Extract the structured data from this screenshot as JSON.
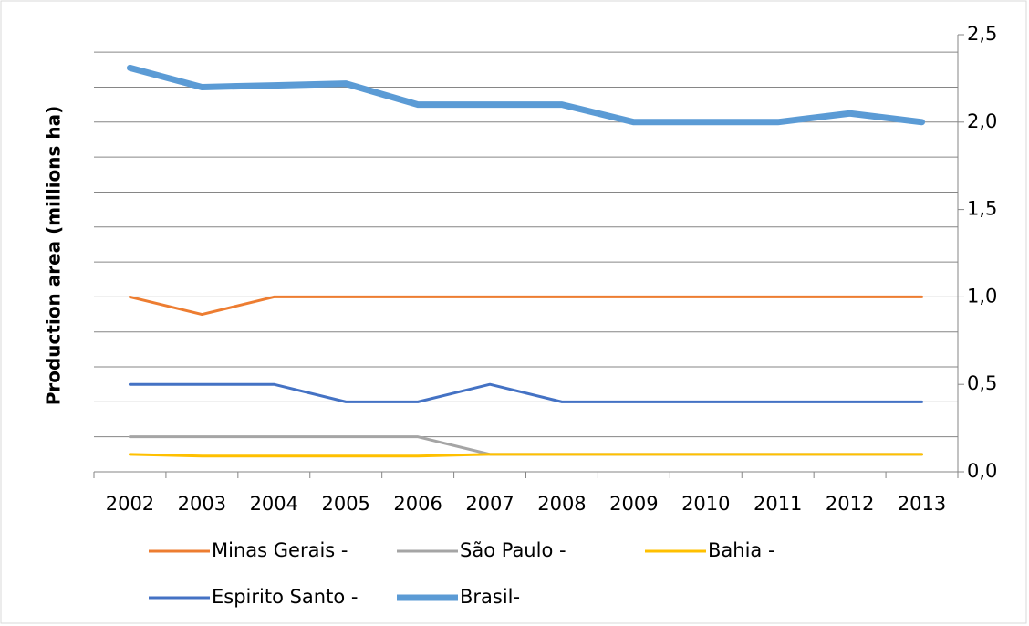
{
  "chart_data": {
    "type": "line",
    "y_label": "Production area (millions ha)",
    "categories": [
      "2002",
      "2003",
      "2004",
      "2005",
      "2006",
      "2007",
      "2008",
      "2009",
      "2010",
      "2011",
      "2012",
      "2013"
    ],
    "series": [
      {
        "name": "Minas Gerais -",
        "color": "#ed7d31",
        "values": [
          1.0,
          0.9,
          1.0,
          1.0,
          1.0,
          1.0,
          1.0,
          1.0,
          1.0,
          1.0,
          1.0,
          1.0
        ]
      },
      {
        "name": "São Paulo -",
        "color": "#a5a5a5",
        "values": [
          0.2,
          0.2,
          0.2,
          0.2,
          0.2,
          0.1,
          0.1,
          0.1,
          0.1,
          0.1,
          0.1,
          0.1
        ]
      },
      {
        "name": "Bahia -",
        "color": "#ffc000",
        "values": [
          0.1,
          0.09,
          0.09,
          0.09,
          0.09,
          0.1,
          0.1,
          0.1,
          0.1,
          0.1,
          0.1,
          0.1
        ]
      },
      {
        "name": "Espirito Santo -",
        "color": "#4472c4",
        "values": [
          0.5,
          0.5,
          0.5,
          0.4,
          0.4,
          0.5,
          0.4,
          0.4,
          0.4,
          0.4,
          0.4,
          0.4
        ]
      },
      {
        "name": "Brasil-",
        "color": "#5b9bd5",
        "values": [
          2.31,
          2.2,
          2.21,
          2.22,
          2.1,
          2.1,
          2.1,
          2.0,
          2.0,
          2.0,
          2.05,
          2.0
        ]
      }
    ],
    "ylim": [
      0,
      2.5
    ],
    "yticks": [
      {
        "value": 0,
        "label": "0,0"
      },
      {
        "value": 0.5,
        "label": "0,5"
      },
      {
        "value": 1,
        "label": "1,0"
      },
      {
        "value": 1.5,
        "label": "1,5"
      },
      {
        "value": 2,
        "label": "2,0"
      },
      {
        "value": 2.5,
        "label": "2,5"
      }
    ],
    "ygrid": [
      0.2,
      0.4,
      0.6,
      0.8,
      1.0,
      1.2,
      1.4,
      1.6,
      1.8,
      2.0,
      2.2,
      2.4
    ],
    "y_axis_side": "right"
  }
}
